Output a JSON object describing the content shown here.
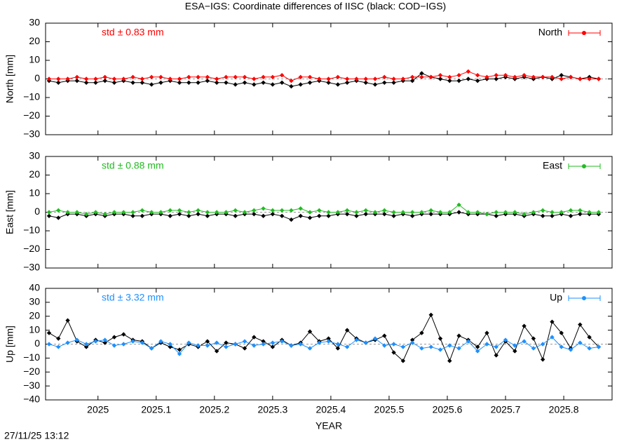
{
  "footer": "27/11/25 13:12",
  "chart_data": [
    {
      "type": "line",
      "title": "ESA−IGS: Coordinate differences of IISC (black: COD−IGS)",
      "ylabel": "North [mm]",
      "annotation": "std ± 0.83 mm",
      "legend": "top-right",
      "xlim": [
        2024.91,
        2025.883
      ],
      "xticks": [
        2025,
        2025.1,
        2025.2,
        2025.3,
        2025.4,
        2025.5,
        2025.6,
        2025.7,
        2025.8
      ],
      "ylim": [
        -30,
        30
      ],
      "yticks": [
        {
          "value": -30,
          "label": "−30"
        },
        {
          "value": -20,
          "label": "−20"
        },
        {
          "value": -10,
          "label": "−10"
        },
        0,
        10,
        20,
        30
      ],
      "x": [
        2024.916,
        2024.932,
        2024.948,
        2024.964,
        2024.98,
        2024.996,
        2025.012,
        2025.028,
        2025.044,
        2025.06,
        2025.076,
        2025.092,
        2025.108,
        2025.124,
        2025.14,
        2025.156,
        2025.172,
        2025.188,
        2025.204,
        2025.22,
        2025.236,
        2025.252,
        2025.268,
        2025.284,
        2025.3,
        2025.316,
        2025.332,
        2025.348,
        2025.364,
        2025.38,
        2025.396,
        2025.412,
        2025.428,
        2025.444,
        2025.46,
        2025.476,
        2025.492,
        2025.508,
        2025.524,
        2025.54,
        2025.556,
        2025.572,
        2025.588,
        2025.604,
        2025.62,
        2025.636,
        2025.652,
        2025.668,
        2025.684,
        2025.7,
        2025.716,
        2025.732,
        2025.748,
        2025.764,
        2025.78,
        2025.796,
        2025.812,
        2025.828,
        2025.844,
        2025.86
      ],
      "series": [
        {
          "color": "#000000",
          "values": [
            -1,
            -2,
            -1,
            -1,
            -2,
            -2,
            -1,
            -2,
            -1,
            -2,
            -2,
            -3,
            -2,
            -1,
            -2,
            -2,
            -2,
            -1,
            -2,
            -2,
            -3,
            -2,
            -3,
            -2,
            -3,
            -2,
            -4,
            -3,
            -2,
            -1,
            -2,
            -3,
            -2,
            -1,
            -2,
            -3,
            -2,
            -2,
            -1,
            -1,
            3,
            1,
            0,
            -1,
            -1,
            0,
            -1,
            0,
            0,
            1,
            0,
            1,
            0,
            1,
            0,
            2,
            1,
            0,
            1,
            0
          ]
        },
        {
          "name": "North",
          "color": "#ff0000",
          "values": [
            0,
            0,
            0,
            1,
            0,
            0,
            1,
            0,
            0,
            1,
            0,
            1,
            1,
            0,
            0,
            1,
            1,
            1,
            0,
            1,
            1,
            1,
            0,
            1,
            1,
            2,
            -1,
            1,
            1,
            0,
            0,
            1,
            0,
            0,
            0,
            0,
            1,
            0,
            0,
            1,
            1,
            1,
            2,
            1,
            2,
            4,
            2,
            1,
            2,
            2,
            1,
            2,
            1,
            1,
            1,
            0,
            1,
            0,
            0,
            0
          ]
        }
      ]
    },
    {
      "type": "line",
      "ylabel": "East [mm]",
      "annotation": "std ± 0.88 mm",
      "legend": "top-right",
      "xlim": [
        2024.91,
        2025.883
      ],
      "xticks": [
        2025,
        2025.1,
        2025.2,
        2025.3,
        2025.4,
        2025.5,
        2025.6,
        2025.7,
        2025.8
      ],
      "ylim": [
        -30,
        30
      ],
      "yticks": [
        {
          "value": -30,
          "label": "−30"
        },
        {
          "value": -20,
          "label": "−20"
        },
        {
          "value": -10,
          "label": "−10"
        },
        0,
        10,
        20,
        30
      ],
      "x": [
        2024.916,
        2024.932,
        2024.948,
        2024.964,
        2024.98,
        2024.996,
        2025.012,
        2025.028,
        2025.044,
        2025.06,
        2025.076,
        2025.092,
        2025.108,
        2025.124,
        2025.14,
        2025.156,
        2025.172,
        2025.188,
        2025.204,
        2025.22,
        2025.236,
        2025.252,
        2025.268,
        2025.284,
        2025.3,
        2025.316,
        2025.332,
        2025.348,
        2025.364,
        2025.38,
        2025.396,
        2025.412,
        2025.428,
        2025.444,
        2025.46,
        2025.476,
        2025.492,
        2025.508,
        2025.524,
        2025.54,
        2025.556,
        2025.572,
        2025.588,
        2025.604,
        2025.62,
        2025.636,
        2025.652,
        2025.668,
        2025.684,
        2025.7,
        2025.716,
        2025.732,
        2025.748,
        2025.764,
        2025.78,
        2025.796,
        2025.812,
        2025.828,
        2025.844,
        2025.86
      ],
      "series": [
        {
          "color": "#000000",
          "values": [
            -2,
            -3,
            -1,
            -1,
            -2,
            -1,
            -2,
            -1,
            -1,
            -2,
            -2,
            -1,
            -1,
            -2,
            -1,
            -2,
            -1,
            -2,
            -1,
            -1,
            -2,
            -1,
            -1,
            -2,
            -1,
            -2,
            -4,
            -2,
            -3,
            -2,
            -2,
            -1,
            -1,
            -2,
            -1,
            -1,
            -1,
            -2,
            -1,
            -2,
            -1,
            -1,
            -1,
            -1,
            0,
            -1,
            -1,
            -1,
            -2,
            -1,
            -1,
            -2,
            -1,
            -2,
            -2,
            -1,
            -2,
            -1,
            -1,
            -1
          ]
        },
        {
          "name": "East",
          "color": "#22bb22",
          "values": [
            0,
            1,
            0,
            0,
            -1,
            0,
            -1,
            0,
            0,
            0,
            1,
            0,
            0,
            1,
            1,
            0,
            1,
            0,
            0,
            0,
            1,
            0,
            1,
            2,
            1,
            1,
            1,
            2,
            0,
            1,
            0,
            0,
            1,
            0,
            1,
            0,
            1,
            0,
            0,
            0,
            0,
            1,
            0,
            0,
            4,
            0,
            0,
            -1,
            0,
            0,
            0,
            -1,
            0,
            1,
            0,
            0,
            1,
            1,
            0,
            0
          ]
        }
      ]
    },
    {
      "type": "line",
      "ylabel": "Up [mm]",
      "xlabel": "YEAR",
      "annotation": "std ± 3.32 mm",
      "legend": "top-right",
      "xlim": [
        2024.91,
        2025.883
      ],
      "xticks": [
        2025,
        2025.1,
        2025.2,
        2025.3,
        2025.4,
        2025.5,
        2025.6,
        2025.7,
        2025.8
      ],
      "ylim": [
        -40,
        40
      ],
      "yticks": [
        {
          "value": -40,
          "label": "−40"
        },
        {
          "value": -30,
          "label": "−30"
        },
        {
          "value": -20,
          "label": "−20"
        },
        {
          "value": -10,
          "label": "−10"
        },
        0,
        10,
        20,
        30,
        40
      ],
      "x": [
        2024.916,
        2024.932,
        2024.948,
        2024.964,
        2024.98,
        2024.996,
        2025.012,
        2025.028,
        2025.044,
        2025.06,
        2025.076,
        2025.092,
        2025.108,
        2025.124,
        2025.14,
        2025.156,
        2025.172,
        2025.188,
        2025.204,
        2025.22,
        2025.236,
        2025.252,
        2025.268,
        2025.284,
        2025.3,
        2025.316,
        2025.332,
        2025.348,
        2025.364,
        2025.38,
        2025.396,
        2025.412,
        2025.428,
        2025.444,
        2025.46,
        2025.476,
        2025.492,
        2025.508,
        2025.524,
        2025.54,
        2025.556,
        2025.572,
        2025.588,
        2025.604,
        2025.62,
        2025.636,
        2025.652,
        2025.668,
        2025.684,
        2025.7,
        2025.716,
        2025.732,
        2025.748,
        2025.764,
        2025.78,
        2025.796,
        2025.812,
        2025.828,
        2025.844,
        2025.86
      ],
      "series": [
        {
          "color": "#000000",
          "values": [
            8,
            4,
            17,
            2,
            -2,
            3,
            1,
            5,
            7,
            3,
            2,
            -3,
            1,
            -2,
            -4,
            0,
            -2,
            2,
            -5,
            1,
            0,
            -3,
            5,
            2,
            -2,
            3,
            -1,
            1,
            9,
            2,
            4,
            -3,
            10,
            4,
            1,
            3,
            6,
            -6,
            -12,
            3,
            8,
            21,
            4,
            -12,
            6,
            3,
            -2,
            8,
            -8,
            2,
            -5,
            13,
            4,
            -11,
            16,
            8,
            -3,
            14,
            5,
            -2
          ]
        },
        {
          "name": "Up",
          "color": "#1e90ff",
          "values": [
            0,
            -2,
            1,
            3,
            0,
            2,
            3,
            -1,
            0,
            2,
            1,
            -3,
            2,
            0,
            -7,
            1,
            -1,
            -1,
            1,
            -2,
            0,
            2,
            -1,
            0,
            1,
            2,
            -1,
            0,
            -3,
            1,
            2,
            0,
            -2,
            3,
            1,
            4,
            -1,
            0,
            -2,
            1,
            -3,
            -2,
            -4,
            -1,
            -3,
            2,
            -5,
            0,
            -2,
            3,
            -1,
            2,
            -3,
            0,
            5,
            -2,
            -4,
            1,
            -3,
            -2
          ]
        }
      ]
    }
  ]
}
